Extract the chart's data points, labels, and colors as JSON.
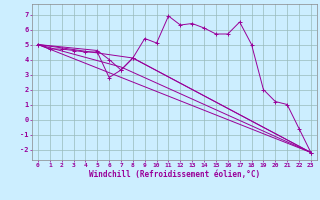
{
  "bg_color": "#cceeff",
  "line_color": "#990099",
  "grid_color": "#99bbbb",
  "xlabel": "Windchill (Refroidissement éolien,°C)",
  "xlim": [
    -0.5,
    23.5
  ],
  "ylim": [
    -2.7,
    7.7
  ],
  "xticks": [
    0,
    1,
    2,
    3,
    4,
    5,
    6,
    7,
    8,
    9,
    10,
    11,
    12,
    13,
    14,
    15,
    16,
    17,
    18,
    19,
    20,
    21,
    22,
    23
  ],
  "yticks": [
    -2,
    -1,
    0,
    1,
    2,
    3,
    4,
    5,
    6,
    7
  ],
  "series": [
    {
      "x": [
        0,
        1,
        2,
        3,
        4,
        5,
        6,
        7,
        8,
        9,
        10,
        11,
        12,
        13,
        14,
        15,
        16,
        17,
        18,
        19,
        20,
        21,
        22,
        23
      ],
      "y": [
        5.0,
        4.7,
        4.7,
        4.6,
        4.5,
        4.5,
        2.8,
        3.3,
        4.1,
        5.4,
        5.1,
        6.9,
        6.3,
        6.4,
        6.1,
        5.7,
        5.7,
        6.5,
        5.0,
        2.0,
        1.2,
        1.0,
        -0.6,
        -2.2
      ],
      "has_markers": true
    },
    {
      "x": [
        0,
        23
      ],
      "y": [
        5.0,
        -2.2
      ],
      "has_markers": false
    },
    {
      "x": [
        0,
        5,
        6,
        7,
        8,
        23
      ],
      "y": [
        5.0,
        4.6,
        4.0,
        3.3,
        4.1,
        -2.2
      ],
      "has_markers": true
    },
    {
      "x": [
        0,
        7,
        23
      ],
      "y": [
        5.0,
        3.5,
        -2.2
      ],
      "has_markers": false
    },
    {
      "x": [
        0,
        8,
        23
      ],
      "y": [
        5.0,
        4.1,
        -2.2
      ],
      "has_markers": false
    }
  ]
}
